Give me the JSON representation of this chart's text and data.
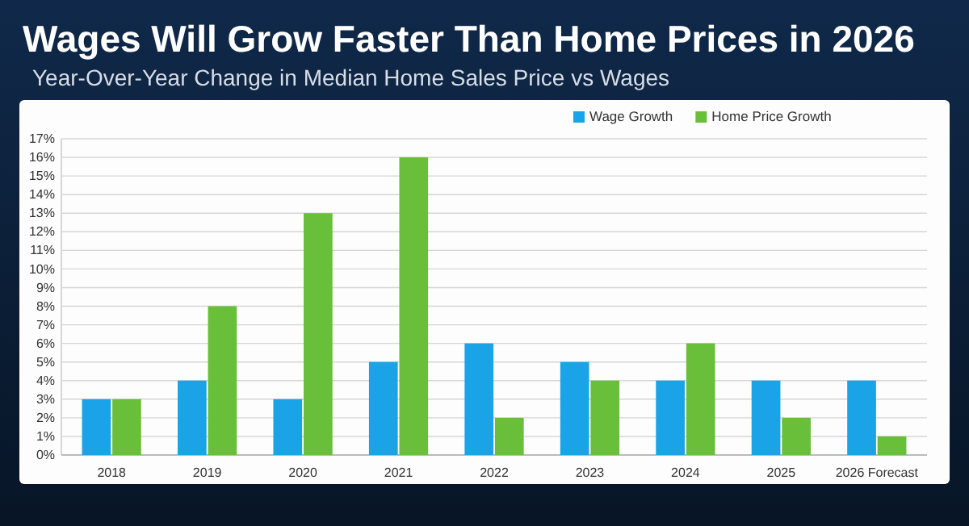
{
  "chart_data": {
    "type": "bar",
    "title": "Wages Will Grow Faster Than Home Prices in 2026",
    "subtitle": "Year-Over-Year Change in Median Home Sales Price vs Wages",
    "categories": [
      "2018",
      "2019",
      "2020",
      "2021",
      "2022",
      "2023",
      "2024",
      "2025",
      "2026 Forecast"
    ],
    "series": [
      {
        "name": "Wage Growth",
        "color": "#1aa3e6",
        "values": [
          3,
          4,
          3,
          5,
          6,
          5,
          4,
          4,
          4
        ]
      },
      {
        "name": "Home Price Growth",
        "color": "#6abf3a",
        "values": [
          3,
          8,
          13,
          16,
          2,
          4,
          6,
          2,
          1
        ]
      }
    ],
    "ylim": [
      0,
      17
    ],
    "yticks": [
      {
        "value": 0,
        "label": "0%"
      },
      {
        "value": 1,
        "label": "1%"
      },
      {
        "value": 2,
        "label": "2%"
      },
      {
        "value": 3,
        "label": "3%"
      },
      {
        "value": 4,
        "label": "4%"
      },
      {
        "value": 5,
        "label": "5%"
      },
      {
        "value": 6,
        "label": "6%"
      },
      {
        "value": 7,
        "label": "7%"
      },
      {
        "value": 8,
        "label": "8%"
      },
      {
        "value": 9,
        "label": "9%"
      },
      {
        "value": 10,
        "label": "10%"
      },
      {
        "value": 11,
        "label": "11%"
      },
      {
        "value": 12,
        "label": "12%"
      },
      {
        "value": 13,
        "label": "13%"
      },
      {
        "value": 14,
        "label": "14%"
      },
      {
        "value": 15,
        "label": "15%"
      },
      {
        "value": 16,
        "label": "16%"
      },
      {
        "value": 17,
        "label": "17%"
      }
    ],
    "grid": "y",
    "legend": "top right"
  }
}
